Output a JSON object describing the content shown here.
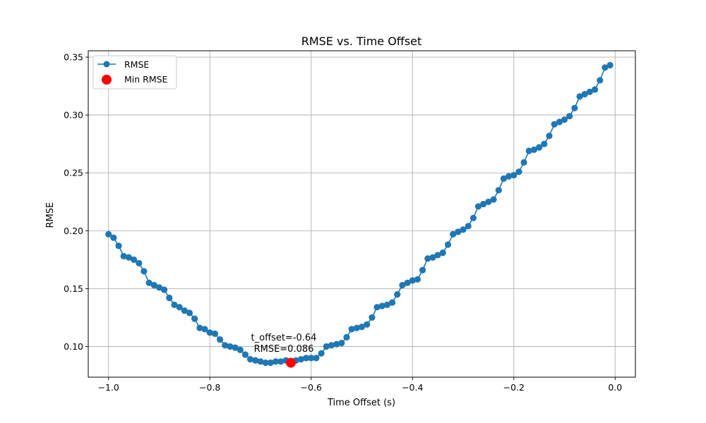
{
  "chart_data": {
    "type": "line",
    "title": "RMSE vs. Time Offset",
    "xlabel": "Time Offset (s)",
    "ylabel": "RMSE",
    "xlim": [
      -1.04,
      0.04
    ],
    "ylim": [
      0.0735,
      0.3555
    ],
    "xticks": [
      -1.0,
      -0.8,
      -0.6,
      -0.4,
      -0.2,
      0.0
    ],
    "xtick_labels": [
      "−1.0",
      "−0.8",
      "−0.6",
      "−0.4",
      "−0.2",
      "0.0"
    ],
    "yticks": [
      0.1,
      0.15,
      0.2,
      0.25,
      0.3,
      0.35
    ],
    "ytick_labels": [
      "0.10",
      "0.15",
      "0.20",
      "0.25",
      "0.30",
      "0.35"
    ],
    "grid": true,
    "legend_position": "top-left",
    "series": [
      {
        "name": "RMSE",
        "color": "#1f77b4",
        "x": [
          -1.0,
          -0.99,
          -0.98,
          -0.97,
          -0.96,
          -0.95,
          -0.94,
          -0.93,
          -0.92,
          -0.91,
          -0.9,
          -0.89,
          -0.88,
          -0.87,
          -0.86,
          -0.85,
          -0.84,
          -0.83,
          -0.82,
          -0.81,
          -0.8,
          -0.79,
          -0.78,
          -0.77,
          -0.76,
          -0.75,
          -0.74,
          -0.73,
          -0.72,
          -0.71,
          -0.7,
          -0.69,
          -0.68,
          -0.67,
          -0.66,
          -0.65,
          -0.64,
          -0.63,
          -0.62,
          -0.61,
          -0.6,
          -0.59,
          -0.58,
          -0.57,
          -0.56,
          -0.55,
          -0.54,
          -0.53,
          -0.52,
          -0.51,
          -0.5,
          -0.49,
          -0.48,
          -0.47,
          -0.46,
          -0.45,
          -0.44,
          -0.43,
          -0.42,
          -0.41,
          -0.4,
          -0.39,
          -0.38,
          -0.37,
          -0.36,
          -0.35,
          -0.34,
          -0.33,
          -0.32,
          -0.31,
          -0.3,
          -0.29,
          -0.28,
          -0.27,
          -0.26,
          -0.25,
          -0.24,
          -0.23,
          -0.22,
          -0.21,
          -0.2,
          -0.19,
          -0.18,
          -0.17,
          -0.16,
          -0.15,
          -0.14,
          -0.13,
          -0.12,
          -0.11,
          -0.1,
          -0.09,
          -0.08,
          -0.07,
          -0.06,
          -0.05,
          -0.04,
          -0.03,
          -0.02,
          -0.01
        ],
        "y": [
          0.197,
          0.194,
          0.187,
          0.178,
          0.177,
          0.175,
          0.172,
          0.165,
          0.155,
          0.153,
          0.151,
          0.149,
          0.142,
          0.136,
          0.134,
          0.131,
          0.129,
          0.124,
          0.116,
          0.115,
          0.112,
          0.111,
          0.106,
          0.101,
          0.1,
          0.099,
          0.097,
          0.093,
          0.089,
          0.088,
          0.087,
          0.086,
          0.086,
          0.087,
          0.087,
          0.088,
          0.086,
          0.088,
          0.089,
          0.09,
          0.09,
          0.09,
          0.094,
          0.1,
          0.101,
          0.102,
          0.103,
          0.108,
          0.115,
          0.116,
          0.117,
          0.119,
          0.125,
          0.134,
          0.135,
          0.136,
          0.138,
          0.145,
          0.153,
          0.155,
          0.157,
          0.158,
          0.166,
          0.176,
          0.177,
          0.179,
          0.181,
          0.188,
          0.197,
          0.199,
          0.201,
          0.204,
          0.211,
          0.221,
          0.223,
          0.225,
          0.227,
          0.235,
          0.245,
          0.247,
          0.248,
          0.251,
          0.259,
          0.269,
          0.27,
          0.272,
          0.275,
          0.282,
          0.292,
          0.294,
          0.296,
          0.299,
          0.306,
          0.316,
          0.318,
          0.32,
          0.322,
          0.33,
          0.341,
          0.343
        ]
      }
    ],
    "min_point": {
      "name": "Min RMSE",
      "x": -0.64,
      "y": 0.086,
      "color": "#ff0000"
    },
    "annotation": {
      "line1": "t_offset=-0.64",
      "line2": "RMSE=0.086"
    }
  }
}
